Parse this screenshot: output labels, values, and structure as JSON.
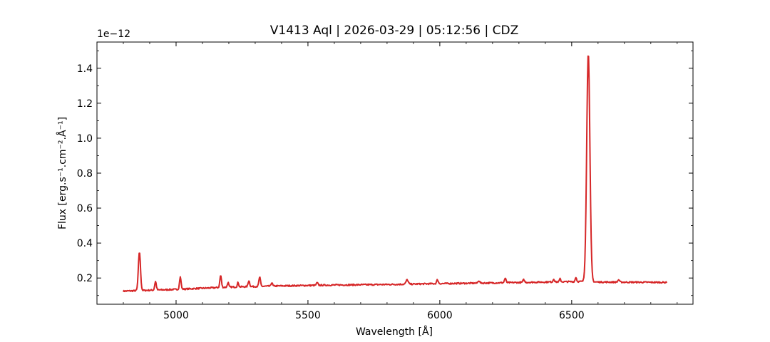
{
  "chart_data": {
    "type": "line",
    "title": "V1413 Aql | 2026-03-29 | 05:12:56 | CDZ",
    "xlabel": "Wavelength [Å]",
    "ylabel": "Flux [erg.s⁻¹.cm⁻².Å⁻¹]",
    "y_offset_label": "1e−12",
    "xlim": [
      4700,
      6960
    ],
    "ylim": [
      0.05,
      1.55
    ],
    "y_scale_factor": 1e-12,
    "xticks": [
      5000,
      5500,
      6000,
      6500
    ],
    "yticks": [
      0.2,
      0.4,
      0.6,
      0.8,
      1.0,
      1.2,
      1.4
    ],
    "x_tick_labels": [
      "5000",
      "5500",
      "6000",
      "6500"
    ],
    "y_tick_labels": [
      "0.2",
      "0.4",
      "0.6",
      "0.8",
      "1.0",
      "1.2",
      "1.4"
    ],
    "grid": false,
    "line_color": "#d62728",
    "series": [
      {
        "continuum": [
          [
            4800,
            0.125
          ],
          [
            5000,
            0.135
          ],
          [
            5200,
            0.148
          ],
          [
            5400,
            0.155
          ],
          [
            5600,
            0.16
          ],
          [
            5800,
            0.163
          ],
          [
            6000,
            0.168
          ],
          [
            6200,
            0.172
          ],
          [
            6400,
            0.177
          ],
          [
            6540,
            0.18
          ],
          [
            6600,
            0.177
          ],
          [
            6860,
            0.175
          ]
        ],
        "emission_lines": [
          {
            "center": 4861,
            "peak": 0.35,
            "width": 4
          },
          {
            "center": 4922,
            "peak": 0.18,
            "width": 3
          },
          {
            "center": 5016,
            "peak": 0.205,
            "width": 3
          },
          {
            "center": 5169,
            "peak": 0.215,
            "width": 3
          },
          {
            "center": 5197,
            "peak": 0.175,
            "width": 2.5
          },
          {
            "center": 5235,
            "peak": 0.175,
            "width": 2.5
          },
          {
            "center": 5276,
            "peak": 0.185,
            "width": 3
          },
          {
            "center": 5317,
            "peak": 0.205,
            "width": 3
          },
          {
            "center": 5363,
            "peak": 0.175,
            "width": 2.5
          },
          {
            "center": 5535,
            "peak": 0.173,
            "width": 3
          },
          {
            "center": 5876,
            "peak": 0.19,
            "width": 4
          },
          {
            "center": 5991,
            "peak": 0.19,
            "width": 3
          },
          {
            "center": 6148,
            "peak": 0.185,
            "width": 3
          },
          {
            "center": 6248,
            "peak": 0.198,
            "width": 3
          },
          {
            "center": 6318,
            "peak": 0.19,
            "width": 3
          },
          {
            "center": 6432,
            "peak": 0.195,
            "width": 2.5
          },
          {
            "center": 6456,
            "peak": 0.195,
            "width": 2.5
          },
          {
            "center": 6516,
            "peak": 0.205,
            "width": 2.5
          },
          {
            "center": 6563,
            "peak": 1.49,
            "width": 6
          },
          {
            "center": 6678,
            "peak": 0.19,
            "width": 3
          }
        ]
      }
    ]
  }
}
